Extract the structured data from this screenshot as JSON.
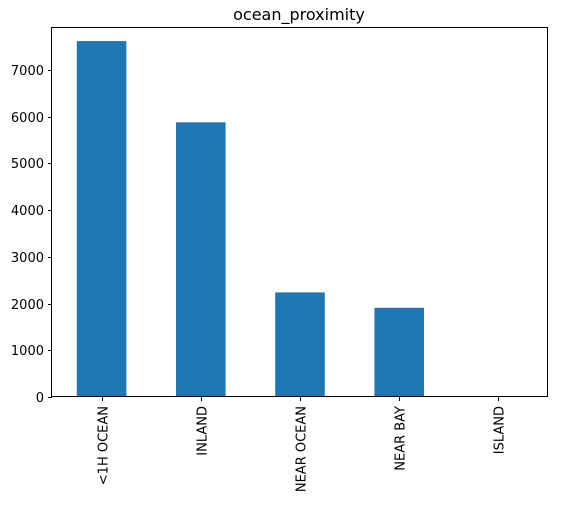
{
  "chart_data": {
    "type": "bar",
    "title": "ocean_proximity",
    "categories": [
      "<1H OCEAN",
      "INLAND",
      "NEAR OCEAN",
      "NEAR BAY",
      "ISLAND"
    ],
    "values": [
      7620,
      5880,
      2240,
      1910,
      5
    ],
    "xlabel": "",
    "ylabel": "",
    "ylim": [
      0,
      8000
    ],
    "ylim_view": [
      0,
      7900
    ],
    "yticks": [
      0,
      1000,
      2000,
      3000,
      4000,
      5000,
      6000,
      7000
    ],
    "grid": false,
    "legend": "none",
    "bar_color": "#1f77b4",
    "x_tick_rotation": "vertical"
  }
}
